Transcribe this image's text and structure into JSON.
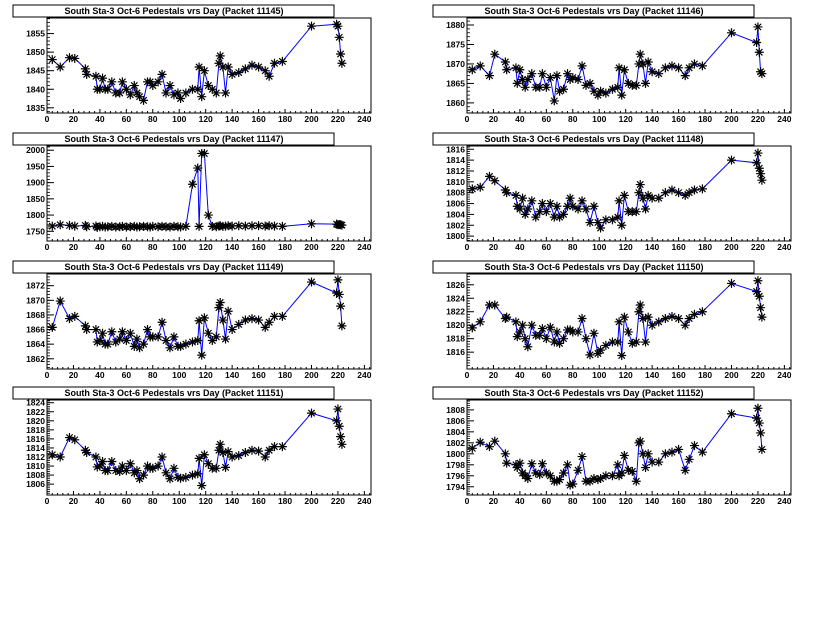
{
  "chart_data": [
    {
      "type": "line",
      "title": "South Sta-3 Oct-6 Pedestals vrs Day (Packet 11145)",
      "xlim": [
        0,
        245
      ],
      "ylim": [
        1833.6,
        1859.2
      ],
      "xticks": [
        0,
        20,
        40,
        60,
        80,
        100,
        120,
        140,
        160,
        180,
        200,
        220,
        240
      ],
      "yticks": [
        1835,
        1840,
        1845,
        1850,
        1855
      ],
      "series_ref": "x",
      "y": [
        1848,
        1846,
        1848.5,
        1848.3,
        1845.5,
        1844,
        1843.5,
        1840,
        1840,
        1843,
        1840,
        1840,
        1842,
        1839,
        1839,
        1842,
        1840,
        1838.5,
        1841,
        1839,
        1838,
        1837,
        1842,
        1842,
        1841,
        1842,
        1844,
        1839,
        1841,
        1838.5,
        1839,
        1837.5,
        1839,
        1840,
        1840,
        1846,
        1838,
        1845,
        1841,
        1840,
        1839,
        1847,
        1849,
        1846,
        1839,
        1846,
        1844,
        1844.5,
        1845.5,
        1846.5,
        1846,
        1845,
        1843.5,
        1847,
        1847.5,
        1857,
        1857.5,
        1857,
        1854,
        1849.5,
        1847
      ]
    },
    {
      "type": "line",
      "title": "South Sta-3 Oct-6 Pedestals vrs Day (Packet 11146)",
      "xlim": [
        0,
        245
      ],
      "ylim": [
        1857.4,
        1881.8
      ],
      "xticks": [
        0,
        20,
        40,
        60,
        80,
        100,
        120,
        140,
        160,
        180,
        200,
        220,
        240
      ],
      "yticks": [
        1860,
        1865,
        1870,
        1875,
        1880
      ],
      "y": [
        1868.5,
        1869.5,
        1867,
        1872.5,
        1870.5,
        1868.5,
        1869,
        1865,
        1868.5,
        1866,
        1864,
        1866,
        1867.5,
        1864,
        1864,
        1867.5,
        1864,
        1866.5,
        1860.5,
        1867,
        1863,
        1863.5,
        1867.5,
        1866,
        1866.5,
        1866,
        1869.5,
        1864.5,
        1865,
        1863,
        1862,
        1863,
        1862.5,
        1863.5,
        1864,
        1869,
        1862,
        1868.5,
        1865,
        1864.5,
        1864.5,
        1870,
        1872.5,
        1870,
        1865,
        1870.5,
        1868,
        1867.5,
        1869,
        1869.5,
        1869,
        1867,
        1869,
        1870,
        1869.5,
        1878,
        1875.5,
        1879.5,
        1873,
        1868,
        1867.5
      ]
    },
    {
      "type": "line",
      "title": "South Sta-3 Oct-6 Pedestals vrs Day (Packet 11147)",
      "xlim": [
        0,
        245
      ],
      "ylim": [
        1720,
        2013
      ],
      "xticks": [
        0,
        20,
        40,
        60,
        80,
        100,
        120,
        140,
        160,
        180,
        200,
        220,
        240
      ],
      "yticks": [
        1750,
        1800,
        1850,
        1900,
        1950,
        2000
      ],
      "y": [
        1766,
        1770,
        1768,
        1766,
        1768,
        1764,
        1766,
        1762,
        1764,
        1765,
        1763,
        1764,
        1765,
        1763,
        1764,
        1765,
        1763,
        1764,
        1765,
        1763,
        1764,
        1765,
        1764,
        1763,
        1765,
        1764,
        1765,
        1764,
        1763,
        1765,
        1764,
        1763,
        1765,
        1895,
        1945,
        1765,
        1990,
        1990,
        1800,
        1765,
        1764,
        1766,
        1767,
        1765,
        1766,
        1767,
        1766,
        1767,
        1766,
        1767,
        1767,
        1766,
        1767,
        1766,
        1765,
        1773,
        1772,
        1770,
        1771,
        1770,
        1769
      ]
    },
    {
      "type": "line",
      "title": "South Sta-3 Oct-6 Pedestals vrs Day (Packet 11148)",
      "xlim": [
        0,
        245
      ],
      "ylim": [
        1799.1,
        1816.6
      ],
      "xticks": [
        0,
        20,
        40,
        60,
        80,
        100,
        120,
        140,
        160,
        180,
        200,
        220,
        240
      ],
      "yticks": [
        1800,
        1802,
        1804,
        1806,
        1808,
        1810,
        1812,
        1814,
        1816
      ],
      "y": [
        1808.7,
        1809,
        1811,
        1810.2,
        1808.5,
        1808,
        1807.5,
        1805.5,
        1805,
        1807,
        1804,
        1805,
        1806.5,
        1803.5,
        1804.5,
        1806,
        1804.5,
        1806,
        1803.5,
        1805.5,
        1803.5,
        1804,
        1805.5,
        1807,
        1805.5,
        1805,
        1806.5,
        1805,
        1802.5,
        1805.5,
        1802.5,
        1801.5,
        1803,
        1803,
        1803.5,
        1806.5,
        1802,
        1807.5,
        1804.5,
        1804.5,
        1804.5,
        1808,
        1809.5,
        1807,
        1805,
        1807.5,
        1807,
        1807,
        1808,
        1808.5,
        1808,
        1807.5,
        1808,
        1808.5,
        1808.7,
        1814,
        1813.5,
        1815.3,
        1812.5,
        1811.5,
        1810.3
      ]
    },
    {
      "type": "line",
      "title": "South Sta-3 Oct-6 Pedestals vrs Day (Packet 11149)",
      "xlim": [
        0,
        245
      ],
      "ylim": [
        1860.6,
        1873.6
      ],
      "xticks": [
        0,
        20,
        40,
        60,
        80,
        100,
        120,
        140,
        160,
        180,
        200,
        220,
        240
      ],
      "yticks": [
        1862,
        1864,
        1866,
        1868,
        1870,
        1872
      ],
      "y": [
        1866.3,
        1869.9,
        1867.5,
        1867.8,
        1866.5,
        1866,
        1866,
        1864.3,
        1864.5,
        1865.5,
        1864,
        1864,
        1865.7,
        1864.3,
        1864.7,
        1865.7,
        1864.5,
        1865.5,
        1863.7,
        1864.7,
        1863.5,
        1864,
        1866,
        1865,
        1865,
        1865,
        1867,
        1864.5,
        1863.5,
        1865,
        1863.7,
        1863.7,
        1864,
        1864.3,
        1864.5,
        1867.2,
        1862.5,
        1867.6,
        1865.5,
        1864.5,
        1865,
        1869,
        1869.7,
        1867.3,
        1864.7,
        1868.5,
        1866,
        1866.7,
        1867.3,
        1867.5,
        1867.3,
        1866.3,
        1867,
        1867.8,
        1867.8,
        1872.5,
        1871,
        1872.8,
        1870.8,
        1869.2,
        1866.5
      ]
    },
    {
      "type": "line",
      "title": "South Sta-3 Oct-6 Pedestals vrs Day (Packet 11150)",
      "xlim": [
        0,
        245
      ],
      "ylim": [
        1813.5,
        1827.6
      ],
      "xticks": [
        0,
        20,
        40,
        60,
        80,
        100,
        120,
        140,
        160,
        180,
        200,
        220,
        240
      ],
      "yticks": [
        1816,
        1818,
        1820,
        1822,
        1824,
        1826
      ],
      "y": [
        1819.6,
        1820.5,
        1823,
        1823,
        1821,
        1821.2,
        1820.5,
        1818.3,
        1819,
        1820,
        1818,
        1816.8,
        1820,
        1818.5,
        1818.5,
        1819.5,
        1818,
        1819.7,
        1817.5,
        1819,
        1817.3,
        1818,
        1819.3,
        1819.3,
        1819,
        1819,
        1821,
        1818,
        1815.6,
        1818.8,
        1815.8,
        1816.3,
        1817,
        1817.5,
        1817.5,
        1820.5,
        1815.5,
        1821.2,
        1819,
        1817.3,
        1817.5,
        1822,
        1823,
        1821,
        1817.5,
        1821.2,
        1820,
        1820.5,
        1821,
        1821.3,
        1821,
        1820,
        1821,
        1821.6,
        1822,
        1826.2,
        1825,
        1826.6,
        1824.3,
        1822.6,
        1821.2
      ]
    },
    {
      "type": "line",
      "title": "South Sta-3 Oct-6 Pedestals vrs Day (Packet 11151)",
      "xlim": [
        0,
        245
      ],
      "ylim": [
        1803.6,
        1824.6
      ],
      "xticks": [
        0,
        20,
        40,
        60,
        80,
        100,
        120,
        140,
        160,
        180,
        200,
        220,
        240
      ],
      "yticks": [
        1806,
        1808,
        1810,
        1812,
        1814,
        1816,
        1818,
        1820,
        1822,
        1824
      ],
      "y": [
        1812.5,
        1812,
        1816.3,
        1815.8,
        1813.5,
        1813,
        1812,
        1809.8,
        1810,
        1811,
        1809,
        1809,
        1811,
        1809,
        1808.8,
        1810,
        1809,
        1810.5,
        1808.5,
        1809,
        1807.2,
        1808,
        1810,
        1809.5,
        1809.5,
        1810,
        1812,
        1808.5,
        1807.2,
        1809.5,
        1807.5,
        1807.3,
        1807.5,
        1808,
        1808.3,
        1811.7,
        1805.7,
        1812.5,
        1810.5,
        1809.5,
        1809.5,
        1813.5,
        1814.8,
        1813,
        1809.7,
        1813.2,
        1812,
        1812.3,
        1813,
        1813.5,
        1813.3,
        1812,
        1813.5,
        1814.3,
        1814.3,
        1821.7,
        1820,
        1822.6,
        1818.8,
        1816.5,
        1814.8
      ]
    },
    {
      "type": "line",
      "title": "South Sta-3 Oct-6 Pedestals vrs Day (Packet 11152)",
      "xlim": [
        0,
        245
      ],
      "ylim": [
        1792.5,
        1809.8
      ],
      "xticks": [
        0,
        20,
        40,
        60,
        80,
        100,
        120,
        140,
        160,
        180,
        200,
        220,
        240
      ],
      "yticks": [
        1794,
        1796,
        1798,
        1800,
        1802,
        1804,
        1806,
        1808
      ],
      "y": [
        1801,
        1802.1,
        1801.3,
        1802.3,
        1800,
        1798.3,
        1798,
        1797.5,
        1798.3,
        1796.5,
        1796,
        1795.5,
        1798.2,
        1796.5,
        1796.2,
        1798.2,
        1796.5,
        1796,
        1795,
        1795,
        1795.3,
        1796.5,
        1798,
        1794.3,
        1794.5,
        1797,
        1799.5,
        1795,
        1795,
        1795.5,
        1795.3,
        1795.5,
        1796,
        1796,
        1798,
        1796,
        1796.5,
        1799.7,
        1797,
        1796.8,
        1795,
        1802,
        1802.3,
        1800,
        1797.5,
        1800,
        1798.5,
        1798.5,
        1800,
        1800.3,
        1800.8,
        1797,
        1799,
        1801.5,
        1800.3,
        1807.3,
        1806.5,
        1808.3,
        1805.6,
        1803.8,
        1800.8
      ]
    }
  ],
  "x": [
    4,
    10,
    17,
    21,
    29,
    30,
    37,
    38,
    40,
    42,
    44,
    46,
    49,
    52,
    55,
    57,
    60,
    63,
    66,
    68,
    70,
    73,
    76,
    78,
    80,
    84,
    87,
    90,
    93,
    96,
    99,
    101,
    105,
    110,
    114,
    115,
    117,
    119,
    122,
    125,
    128,
    130,
    131,
    133,
    135,
    137,
    140,
    145,
    150,
    155,
    160,
    165,
    168,
    172,
    178,
    200,
    219,
    220,
    221,
    222,
    223
  ],
  "xlabel": "",
  "ylabel": "",
  "colors": {
    "line": "#0000ff",
    "marker": "#000000",
    "frame": "#000000"
  }
}
